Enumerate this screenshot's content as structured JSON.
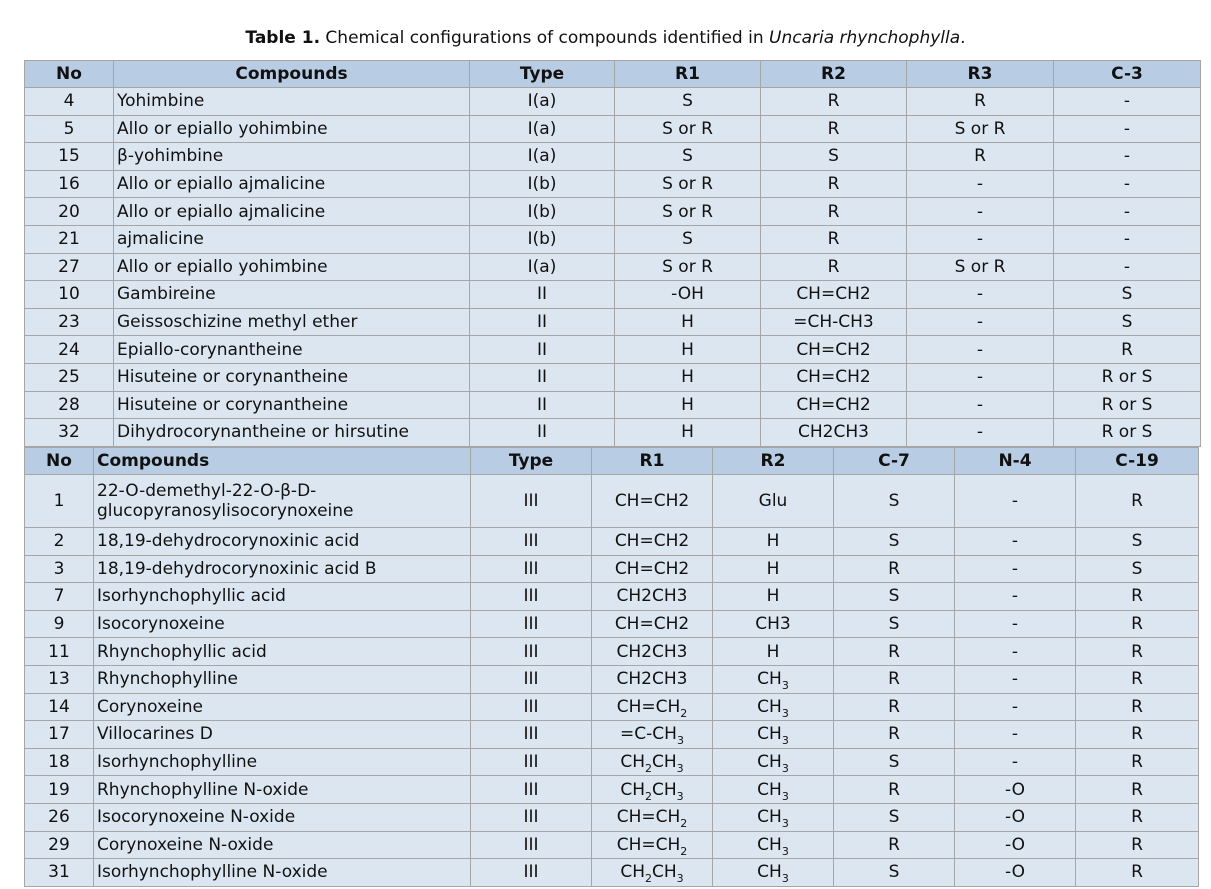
{
  "caption": {
    "label": "Table 1.",
    "text": " Chemical configurations of compounds identified in ",
    "species": "Uncaria rhynchophylla",
    "end": "."
  },
  "tables": [
    {
      "header": [
        "No",
        "Compounds",
        "Type",
        "R1",
        "R2",
        "R3",
        "C-3"
      ],
      "rows": [
        [
          "4",
          "Yohimbine",
          "I(a)",
          "S",
          "R",
          "R",
          "-"
        ],
        [
          "5",
          "Allo or epiallo yohimbine",
          "I(a)",
          "S or R",
          "R",
          "S or R",
          "-"
        ],
        [
          "15",
          "β-yohimbine",
          "I(a)",
          "S",
          "S",
          "R",
          "-"
        ],
        [
          "16",
          "Allo or epiallo ajmalicine",
          "I(b)",
          "S or R",
          "R",
          "-",
          "-"
        ],
        [
          "20",
          "Allo or epiallo ajmalicine",
          "I(b)",
          "S or R",
          "R",
          "-",
          "-"
        ],
        [
          "21",
          "ajmalicine",
          "I(b)",
          "S",
          "R",
          "-",
          "-"
        ],
        [
          "27",
          "Allo or epiallo yohimbine",
          "I(a)",
          "S or R",
          "R",
          "S or R",
          "-"
        ],
        [
          "10",
          "Gambireine",
          "II",
          "-OH",
          "CH=CH2",
          "-",
          "S"
        ],
        [
          "23",
          "Geissoschizine methyl ether",
          "II",
          "H",
          "=CH-CH3",
          "-",
          "S"
        ],
        [
          "24",
          "Epiallo-corynantheine",
          "II",
          "H",
          "CH=CH2",
          "-",
          "R"
        ],
        [
          "25",
          "Hisuteine or corynantheine",
          "II",
          "H",
          "CH=CH2",
          "-",
          "R or S"
        ],
        [
          "28",
          "Hisuteine or corynantheine",
          "II",
          "H",
          "CH=CH2",
          "-",
          "R or S"
        ],
        [
          "32",
          "Dihydrocorynantheine or hirsutine",
          "II",
          "H",
          "CH2CH3",
          "-",
          "R or S"
        ]
      ]
    },
    {
      "header": [
        "No",
        "Compounds",
        "Type",
        "R1",
        "R2",
        "C-7",
        "N-4",
        "C-19"
      ],
      "rows": [
        [
          "1",
          "22-O-demethyl-22-O-β-D-glucopyranosylisocorynoxeine",
          "III",
          "CH=CH2",
          "Glu",
          "S",
          "-",
          "R"
        ],
        [
          "2",
          "18,19-dehydrocorynoxinic acid",
          "III",
          "CH=CH2",
          "H",
          "S",
          "-",
          "S"
        ],
        [
          "3",
          "18,19-dehydrocorynoxinic acid B",
          "III",
          "CH=CH2",
          "H",
          "R",
          "-",
          "S"
        ],
        [
          "7",
          "Isorhynchophyllic acid",
          "III",
          "CH2CH3",
          "H",
          "S",
          "-",
          "R"
        ],
        [
          "9",
          "Isocorynoxeine",
          "III",
          "CH=CH2",
          "CH3",
          "S",
          "-",
          "R"
        ],
        [
          "11",
          "Rhynchophyllic acid",
          "III",
          "CH2CH3",
          "H",
          "R",
          "-",
          "R"
        ],
        [
          "13",
          "Rhynchophylline",
          "III",
          "CH2CH3",
          [
            "CH",
            "3"
          ],
          "R",
          "-",
          "R"
        ],
        [
          "14",
          "Corynoxeine",
          "III",
          [
            "CH=CH",
            "2"
          ],
          [
            "CH",
            "3"
          ],
          "R",
          "-",
          "R"
        ],
        [
          "17",
          "Villocarines D",
          "III",
          [
            "=C-CH",
            "3"
          ],
          [
            "CH",
            "3"
          ],
          "R",
          "-",
          "R"
        ],
        [
          "18",
          "Isorhynchophylline",
          "III",
          [
            "CH",
            "2",
            "CH",
            "3"
          ],
          [
            "CH",
            "3"
          ],
          "S",
          "-",
          "R"
        ],
        [
          "19",
          "Rhynchophylline N-oxide",
          "III",
          [
            "CH",
            "2",
            "CH",
            "3"
          ],
          [
            "CH",
            "3"
          ],
          "R",
          "-O",
          "R"
        ],
        [
          "26",
          "Isocorynoxeine N-oxide",
          "III",
          [
            "CH=CH",
            "2"
          ],
          [
            "CH",
            "3"
          ],
          "S",
          "-O",
          "R"
        ],
        [
          "29",
          "Corynoxeine  N-oxide",
          "III",
          [
            "CH=CH",
            "2"
          ],
          [
            "CH",
            "3"
          ],
          "R",
          "-O",
          "R"
        ],
        [
          "31",
          "Isorhynchophylline N-oxide",
          "III",
          [
            "CH",
            "2",
            "CH",
            "3"
          ],
          [
            "CH",
            "3"
          ],
          "S",
          "-O",
          "R"
        ]
      ]
    }
  ]
}
